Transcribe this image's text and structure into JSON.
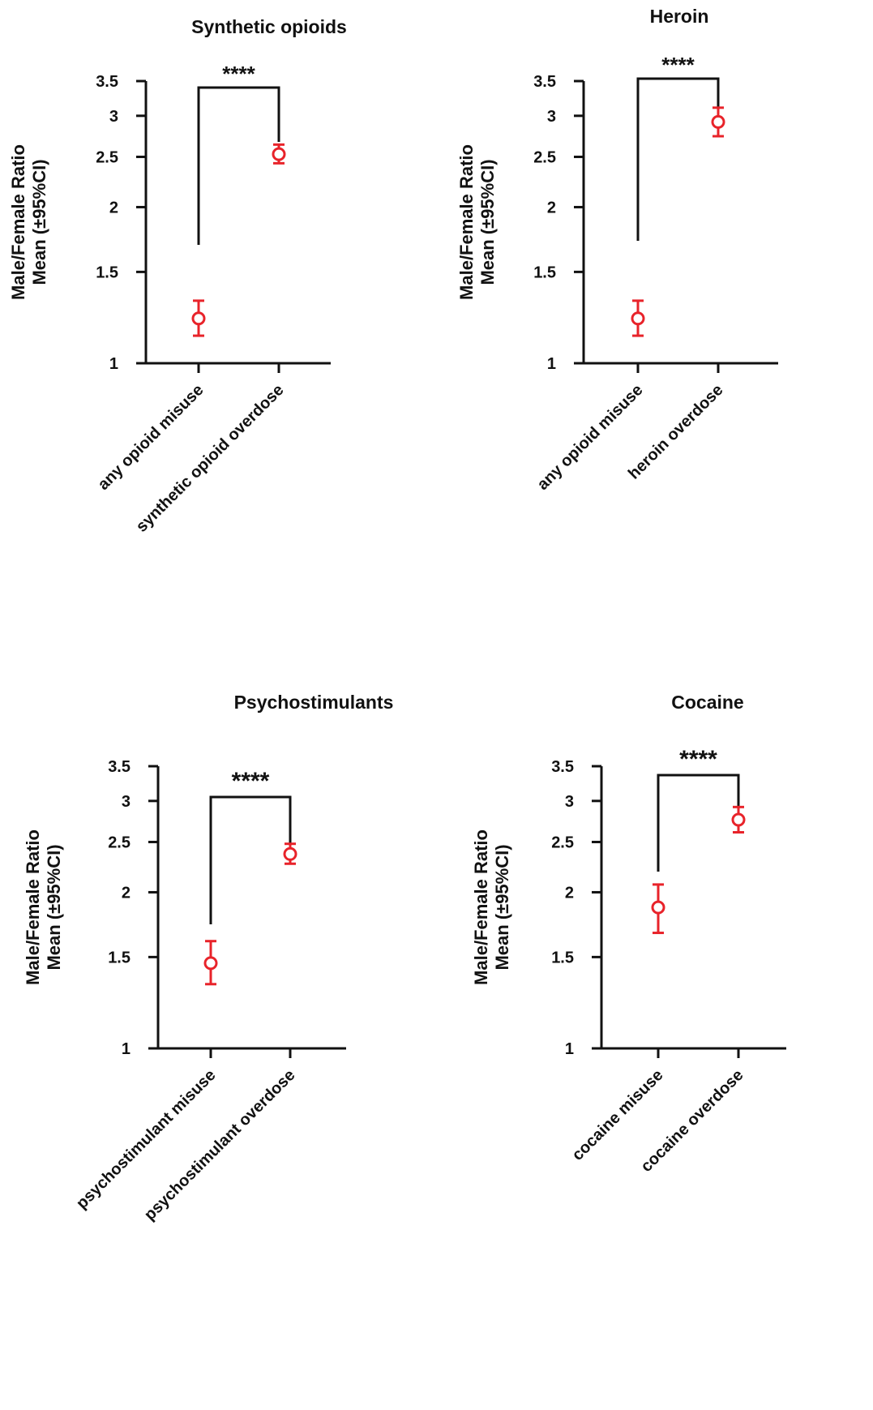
{
  "figure": {
    "y_tick_labels": [
      "1",
      "1.5",
      "2",
      "2.5",
      "3",
      "3.5"
    ],
    "y_label_line1": "Male/Female Ratio",
    "y_label_line2": "Mean (±95%CI)"
  },
  "colors": {
    "point": "#e8232a",
    "axis": "#111111"
  },
  "chart_data": [
    {
      "type": "scatter",
      "title": "Synthetic opioids",
      "categories": [
        "any opioid misuse",
        "synthetic opioid overdose"
      ],
      "series": [
        {
          "mean": [
            1.22,
            2.53
          ],
          "ci_low": [
            1.13,
            2.43
          ],
          "ci_high": [
            1.32,
            2.64
          ]
        }
      ],
      "ylim": [
        1,
        3.5
      ],
      "yscale": "log",
      "yticks": [
        1,
        1.5,
        2,
        2.5,
        3,
        3.5
      ],
      "significance": "****",
      "grid": false
    },
    {
      "type": "scatter",
      "title": "Heroin",
      "categories": [
        "any opioid misuse",
        "heroin overdose"
      ],
      "series": [
        {
          "mean": [
            1.22,
            2.92
          ],
          "ci_low": [
            1.13,
            2.74
          ],
          "ci_high": [
            1.32,
            3.11
          ]
        }
      ],
      "ylim": [
        1,
        3.5
      ],
      "yscale": "log",
      "yticks": [
        1,
        1.5,
        2,
        2.5,
        3,
        3.5
      ],
      "significance": "****",
      "grid": false
    },
    {
      "type": "scatter",
      "title": "Psychostimulants",
      "categories": [
        "psychostimulant misuse",
        "psychostimulant overdose"
      ],
      "series": [
        {
          "mean": [
            1.46,
            2.37
          ],
          "ci_low": [
            1.33,
            2.27
          ],
          "ci_high": [
            1.61,
            2.48
          ]
        }
      ],
      "ylim": [
        1,
        3.5
      ],
      "yscale": "log",
      "yticks": [
        1,
        1.5,
        2,
        2.5,
        3,
        3.5
      ],
      "significance": "****",
      "grid": false
    },
    {
      "type": "scatter",
      "title": "Cocaine",
      "categories": [
        "cocaine misuse",
        "cocaine overdose"
      ],
      "series": [
        {
          "mean": [
            1.87,
            2.76
          ],
          "ci_low": [
            1.67,
            2.61
          ],
          "ci_high": [
            2.07,
            2.92
          ]
        }
      ],
      "ylim": [
        1,
        3.5
      ],
      "yscale": "log",
      "yticks": [
        1,
        1.5,
        2,
        2.5,
        3,
        3.5
      ],
      "significance": "****",
      "grid": false
    }
  ]
}
